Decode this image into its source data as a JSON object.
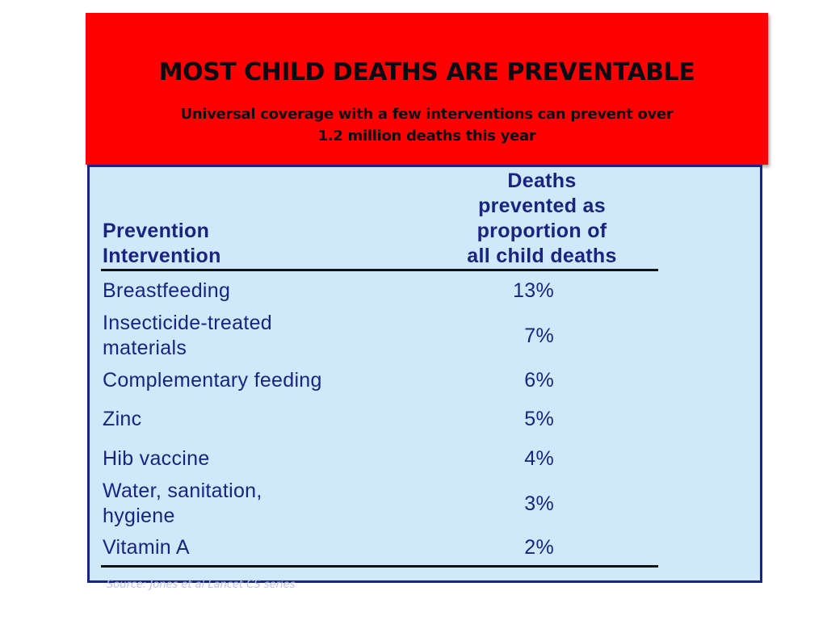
{
  "banner": {
    "title": "MOST CHILD DEATHS ARE PREVENTABLE",
    "subtitle_line1": "Universal coverage with a few interventions can prevent over",
    "subtitle_line2": "1.2 million deaths this year"
  },
  "table": {
    "header_left_line1": "Prevention",
    "header_left_line2": "Intervention",
    "header_right_line1": "Deaths",
    "header_right_line2": "prevented as",
    "header_right_line3": "proportion of",
    "header_right_line4": "all child deaths",
    "rows": [
      {
        "line1": "Breastfeeding",
        "line2": "",
        "value": "13%"
      },
      {
        "line1": "Insecticide-treated",
        "line2": "materials",
        "value": "7%"
      },
      {
        "line1": "Complementary feeding",
        "line2": "",
        "value": "6%"
      },
      {
        "line1": "Zinc",
        "line2": "",
        "value": "5%"
      },
      {
        "line1": "Hib vaccine",
        "line2": "",
        "value": "4%"
      },
      {
        "line1": "Water, sanitation,",
        "line2": "hygiene",
        "value": "3%"
      },
      {
        "line1": "Vitamin A",
        "line2": "",
        "value": "2%"
      }
    ]
  },
  "source": "Source: Jones et al Lancet CS series",
  "colors": {
    "banner_bg": "#ff0000",
    "panel_bg": "#cfe9fb",
    "panel_border": "#1a237e",
    "text": "#1a237e"
  }
}
